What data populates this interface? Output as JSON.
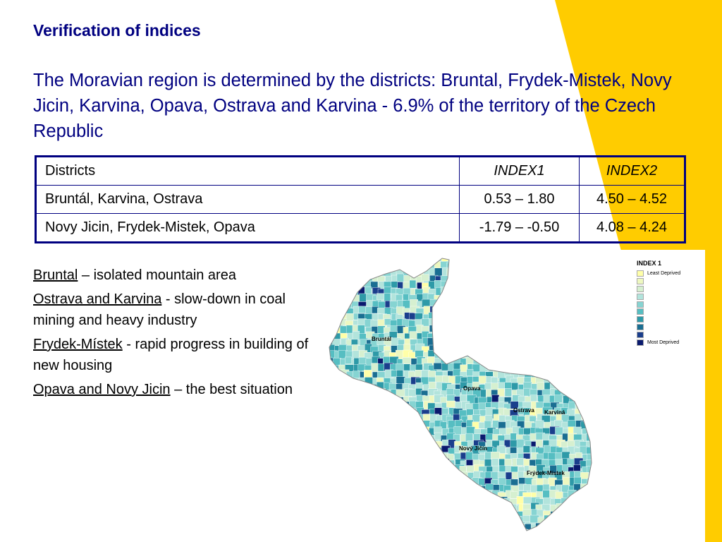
{
  "slide": {
    "heading": "Verification of indices",
    "intro": "The Moravian region is determined by the districts: Bruntal, Frydek-Mistek, Novy Jicin, Karvina, Opava, Ostrava and Karvina - 6.9% of the territory of the Czech Republic",
    "colors": {
      "text_blue": "#000080",
      "accent_yellow": "#FFCC00"
    }
  },
  "table": {
    "headers": [
      "Districts",
      "INDEX1",
      "INDEX2"
    ],
    "rows": [
      {
        "districts": "Bruntál, Karvina, Ostrava",
        "index1": "0.53 – 1.80",
        "index2": "4.50 – 4.52"
      },
      {
        "districts": "Novy Jicin, Frydek-Mistek, Opava",
        "index1": "-1.79 – -0.50",
        "index2": "4.08 – 4.24"
      }
    ]
  },
  "notes": [
    {
      "term": "Bruntal",
      "text": " – isolated mountain area"
    },
    {
      "term": "Ostrava and Karvina",
      "text": " - slow-down in coal mining and heavy industry"
    },
    {
      "term": "Frydek-Místek",
      "text": " - rapid progress in building of new housing"
    },
    {
      "term": "Opava and Novy Jicin",
      "text": " – the best situation"
    }
  ],
  "map": {
    "legend_title": "INDEX  1",
    "legend_low": "Least Deprived",
    "legend_high": "Most Deprived",
    "scale_colors": [
      "#FFFFA8",
      "#EEF8C0",
      "#D6F0D0",
      "#B2E4DC",
      "#86D4D2",
      "#56BEC2",
      "#2E9AA8",
      "#1A6E92",
      "#1A3E8C",
      "#0A1A6E"
    ],
    "labels": {
      "bruntal": "Bruntál",
      "opava": "Opava",
      "ostrava": "Ostrava",
      "karvina": "Karviná",
      "novy_jicin": "Nový Jičín",
      "frydek_mistek": "Frýdek-Místek"
    }
  }
}
